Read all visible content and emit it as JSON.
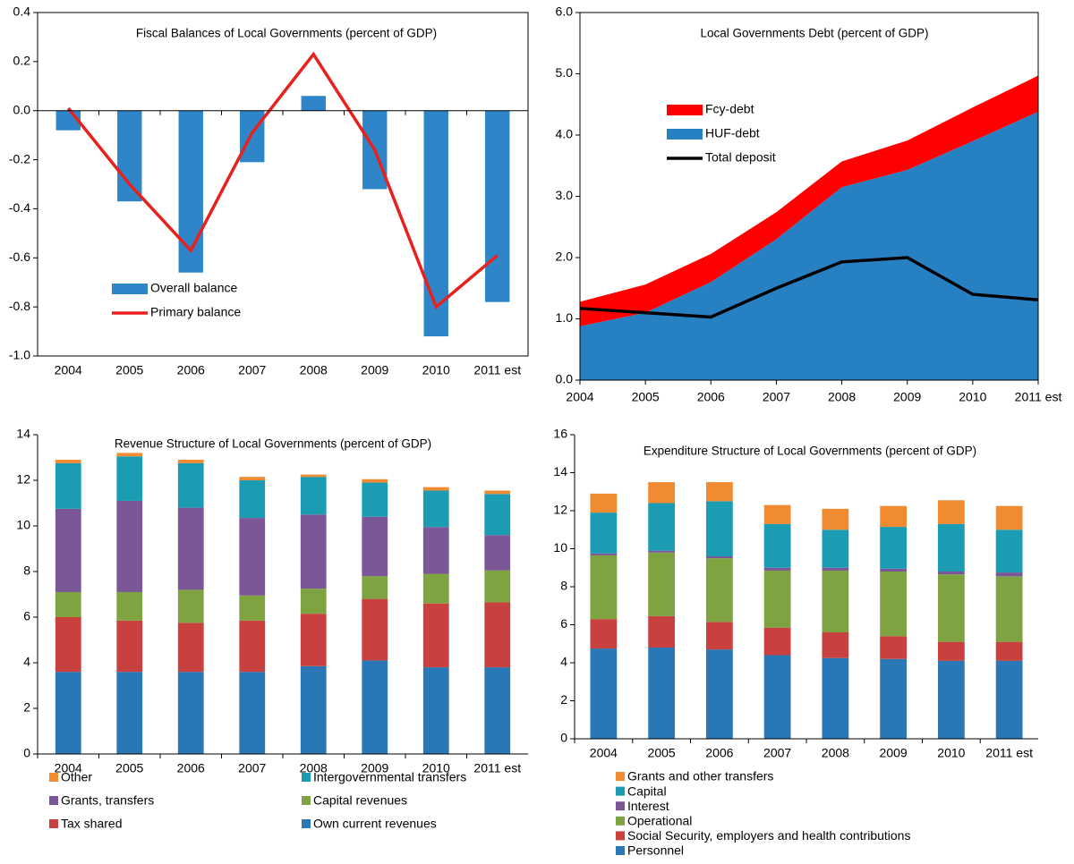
{
  "chart_data": [
    {
      "type": "bar",
      "title": "Fiscal Balances of Local Governments (percent of GDP)",
      "categories": [
        "2004",
        "2005",
        "2006",
        "2007",
        "2008",
        "2009",
        "2010",
        "2011 est"
      ],
      "series": [
        {
          "name": "Overall balance",
          "type": "bar",
          "color": "#2E86C9",
          "values": [
            -0.08,
            -0.37,
            -0.66,
            -0.21,
            0.06,
            -0.32,
            -0.92,
            -0.78
          ]
        },
        {
          "name": "Primary balance",
          "type": "line",
          "color": "#E8211E",
          "values": [
            0.01,
            -0.3,
            -0.57,
            -0.09,
            0.23,
            -0.16,
            -0.8,
            -0.59
          ]
        }
      ],
      "ylim": [
        -1,
        0.4
      ],
      "yticks": [
        0.4,
        0.2,
        {
          "value": 0,
          "label": "0.0"
        },
        -0.2,
        -0.4,
        -0.6,
        -0.8,
        {
          "value": -1,
          "label": "-1.0"
        }
      ]
    },
    {
      "type": "area",
      "title": "Local Governments Debt (percent of GDP)",
      "categories": [
        "2004",
        "2005",
        "2006",
        "2007",
        "2008",
        "2009",
        "2010",
        "2011 est"
      ],
      "series": [
        {
          "name": "HUF-debt",
          "type": "area",
          "color": "#2680C2",
          "values": [
            0.88,
            1.1,
            1.6,
            2.3,
            3.15,
            3.43,
            3.9,
            4.38
          ]
        },
        {
          "name": "Fcy-debt",
          "type": "area",
          "color": "#FF0000",
          "values": [
            0.4,
            0.46,
            0.46,
            0.44,
            0.42,
            0.48,
            0.55,
            0.59
          ]
        },
        {
          "name": "Total deposit",
          "type": "line",
          "color": "#000000",
          "values": [
            1.17,
            1.1,
            1.03,
            1.5,
            1.93,
            2.0,
            1.4,
            1.31
          ]
        }
      ],
      "ylim": [
        0,
        6
      ],
      "yticks": [
        {
          "value": 0,
          "label": "0.0"
        },
        {
          "value": 1,
          "label": "1.0"
        },
        {
          "value": 2,
          "label": "2.0"
        },
        {
          "value": 3,
          "label": "3.0"
        },
        {
          "value": 4,
          "label": "4.0"
        },
        {
          "value": 5,
          "label": "5.0"
        },
        {
          "value": 6,
          "label": "6.0"
        }
      ]
    },
    {
      "type": "stacked_bar",
      "title": "Revenue Structure of Local Governments (percent of GDP)",
      "categories": [
        "2004",
        "2005",
        "2006",
        "2007",
        "2008",
        "2009",
        "2010",
        "2011 est"
      ],
      "series": [
        {
          "name": "Own current revenues",
          "color": "#2A77B5",
          "values": [
            3.6,
            3.6,
            3.6,
            3.6,
            3.85,
            4.1,
            3.8,
            3.8
          ]
        },
        {
          "name": "Tax shared",
          "color": "#C8413E",
          "values": [
            2.4,
            2.25,
            2.15,
            2.25,
            2.3,
            2.7,
            2.8,
            2.85
          ]
        },
        {
          "name": "Capital revenues",
          "color": "#7EA340",
          "values": [
            1.1,
            1.25,
            1.45,
            1.1,
            1.1,
            1.0,
            1.3,
            1.4
          ]
        },
        {
          "name": "Grants, transfers",
          "color": "#7B5798",
          "values": [
            3.65,
            4.0,
            3.6,
            3.4,
            3.25,
            2.6,
            2.05,
            1.55
          ]
        },
        {
          "name": "Intergovernmental transfers",
          "color": "#1C9CB3",
          "values": [
            2.0,
            1.95,
            1.95,
            1.65,
            1.65,
            1.5,
            1.6,
            1.8
          ]
        },
        {
          "name": "Other",
          "color": "#F08B32",
          "values": [
            0.15,
            0.15,
            0.15,
            0.15,
            0.1,
            0.15,
            0.15,
            0.15
          ]
        }
      ],
      "ylim": [
        0,
        14
      ],
      "yticks": [
        0,
        2,
        4,
        6,
        8,
        10,
        12,
        14
      ]
    },
    {
      "type": "stacked_bar",
      "title": "Expenditure Structure of Local Governments (percent of GDP)",
      "categories": [
        "2004",
        "2005",
        "2006",
        "2007",
        "2008",
        "2009",
        "2010",
        "2011 est"
      ],
      "series": [
        {
          "name": "Personnel",
          "color": "#2A77B5",
          "values": [
            4.75,
            4.8,
            4.7,
            4.4,
            4.25,
            4.2,
            4.1,
            4.1
          ]
        },
        {
          "name": "Social Security, employers and health contributions",
          "color": "#C8413E",
          "values": [
            1.55,
            1.65,
            1.45,
            1.45,
            1.35,
            1.2,
            1.0,
            1.0
          ]
        },
        {
          "name": "Operational",
          "color": "#7EA340",
          "values": [
            3.35,
            3.35,
            3.35,
            3.0,
            3.25,
            3.4,
            3.55,
            3.45
          ]
        },
        {
          "name": "Interest",
          "color": "#7B5798",
          "values": [
            0.1,
            0.1,
            0.1,
            0.15,
            0.15,
            0.15,
            0.15,
            0.2
          ]
        },
        {
          "name": "Capital",
          "color": "#1C9CB3",
          "values": [
            2.15,
            2.5,
            2.9,
            2.3,
            2.0,
            2.2,
            2.5,
            2.25
          ]
        },
        {
          "name": "Grants and other transfers",
          "color": "#F08B32",
          "values": [
            1.0,
            1.1,
            1.0,
            1.0,
            1.1,
            1.1,
            1.25,
            1.25
          ]
        }
      ],
      "ylim": [
        0,
        16
      ],
      "yticks": [
        0,
        2,
        4,
        6,
        8,
        10,
        12,
        14,
        16
      ]
    }
  ]
}
